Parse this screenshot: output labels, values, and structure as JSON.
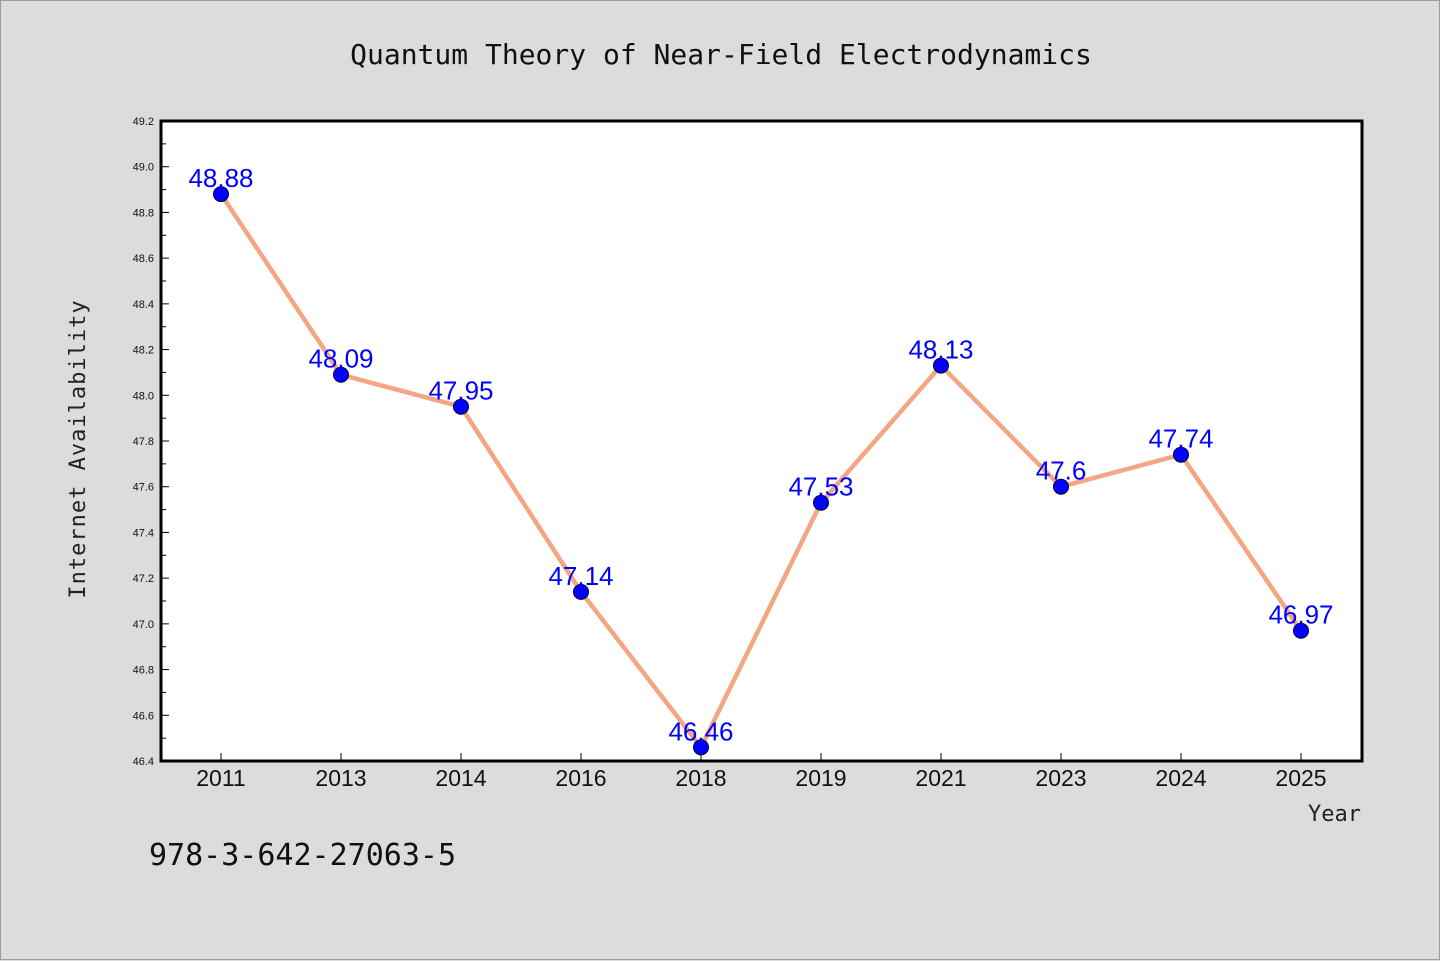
{
  "chart_data": {
    "type": "line",
    "title": "Quantum Theory of Near-Field Electrodynamics",
    "xlabel": "Year",
    "ylabel": "Internet Availability",
    "categories": [
      "2011",
      "2013",
      "2014",
      "2016",
      "2018",
      "2019",
      "2021",
      "2023",
      "2024",
      "2025"
    ],
    "series": [
      {
        "values": [
          48.88,
          48.09,
          47.95,
          47.14,
          46.46,
          47.53,
          48.13,
          47.6,
          47.74,
          46.97
        ],
        "data_labels": [
          "48.88",
          "48.09",
          "47.95",
          "47.14",
          "46.46",
          "47.53",
          "48.13",
          "47.6",
          "47.74",
          "46.97"
        ],
        "line_color": "#f4a582",
        "marker_color": "#0000ff"
      }
    ],
    "ylim": [
      46.4,
      49.2
    ],
    "yticks": [
      "46.4",
      "46.6",
      "46.8",
      "47.0",
      "47.2",
      "47.4",
      "47.6",
      "47.8",
      "48.0",
      "48.2",
      "48.4",
      "48.6",
      "48.8",
      "49.0",
      "49.2"
    ],
    "grid": false,
    "legend": false
  },
  "footnote": "978-3-642-27063-5",
  "colors": {
    "background": "#dcdcdc",
    "plot_area": "#ffffff",
    "data_label": "#0000ff"
  }
}
